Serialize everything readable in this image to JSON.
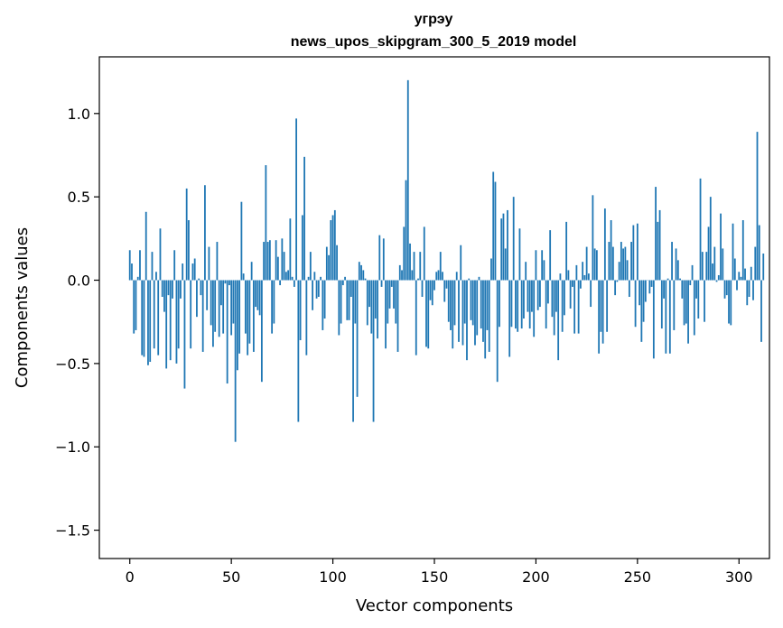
{
  "chart_data": {
    "type": "bar",
    "title_line1": "угрэу",
    "title_line2": "news_upos_skipgram_300_5_2019 model",
    "xlabel": "Vector components",
    "ylabel": "Components values",
    "xlim": [
      -15,
      315
    ],
    "ylim": [
      -1.67,
      1.34
    ],
    "x_ticks": [
      0,
      50,
      100,
      150,
      200,
      250,
      300
    ],
    "x_tick_labels": [
      "0",
      "50",
      "100",
      "150",
      "200",
      "250",
      "300"
    ],
    "y_ticks": [
      1.0,
      0.5,
      0.0,
      -0.5,
      -1.0,
      -1.5
    ],
    "y_tick_labels": [
      "1.0",
      "0.5",
      "0.0",
      "−0.5",
      "−1.0",
      "−1.5"
    ],
    "bar_color": "#1f77b4",
    "values": [
      0.18,
      0.1,
      -0.32,
      -0.3,
      0.02,
      0.18,
      -0.45,
      -0.46,
      0.41,
      -0.51,
      -0.49,
      0.17,
      -0.41,
      0.05,
      -0.45,
      0.31,
      -0.1,
      -0.19,
      -0.53,
      -0.09,
      -0.48,
      -0.11,
      0.18,
      -0.5,
      -0.41,
      -0.11,
      0.1,
      -0.65,
      0.55,
      0.36,
      -0.41,
      0.1,
      0.13,
      -0.22,
      0.01,
      -0.09,
      -0.43,
      0.57,
      -0.18,
      0.2,
      -0.27,
      -0.4,
      -0.31,
      0.23,
      -0.34,
      -0.15,
      -0.32,
      -0.02,
      -0.62,
      -0.03,
      -0.33,
      -0.26,
      -0.97,
      -0.54,
      -0.44,
      0.47,
      0.04,
      -0.32,
      -0.45,
      -0.38,
      0.11,
      -0.43,
      -0.16,
      -0.18,
      -0.21,
      -0.61,
      0.23,
      0.69,
      0.23,
      0.24,
      -0.32,
      -0.26,
      0.24,
      0.14,
      -0.03,
      0.25,
      0.17,
      0.05,
      0.06,
      0.37,
      0.02,
      -0.04,
      0.97,
      -0.85,
      -0.36,
      0.39,
      0.74,
      -0.45,
      0.02,
      0.17,
      -0.18,
      0.05,
      -0.11,
      -0.1,
      0.02,
      -0.3,
      -0.23,
      0.2,
      0.15,
      0.36,
      0.39,
      0.42,
      0.21,
      -0.33,
      -0.26,
      -0.03,
      0.02,
      -0.24,
      -0.24,
      -0.1,
      -0.85,
      -0.26,
      -0.7,
      0.11,
      0.09,
      0.06,
      0.01,
      -0.27,
      -0.16,
      -0.32,
      -0.85,
      -0.23,
      -0.35,
      0.27,
      -0.04,
      0.25,
      -0.41,
      -0.26,
      -0.17,
      -0.04,
      -0.17,
      -0.26,
      -0.43,
      0.09,
      0.06,
      0.32,
      0.6,
      1.2,
      0.22,
      0.06,
      0.17,
      -0.45,
      0.01,
      0.17,
      -0.1,
      0.32,
      -0.4,
      -0.41,
      -0.12,
      -0.15,
      -0.06,
      0.05,
      0.06,
      0.17,
      0.05,
      -0.13,
      -0.05,
      -0.25,
      -0.3,
      -0.41,
      -0.27,
      0.05,
      -0.37,
      0.21,
      -0.39,
      -0.26,
      -0.48,
      0.01,
      -0.24,
      -0.27,
      -0.39,
      -0.33,
      0.02,
      -0.29,
      -0.37,
      -0.47,
      -0.3,
      -0.43,
      0.13,
      0.65,
      0.59,
      -0.61,
      -0.28,
      0.37,
      0.4,
      0.19,
      0.42,
      -0.46,
      -0.28,
      0.5,
      -0.29,
      -0.31,
      0.31,
      -0.29,
      -0.23,
      0.11,
      -0.19,
      -0.29,
      -0.19,
      -0.34,
      0.18,
      -0.18,
      -0.16,
      0.18,
      0.12,
      -0.29,
      -0.14,
      0.3,
      -0.22,
      -0.33,
      -0.19,
      -0.48,
      0.04,
      -0.31,
      -0.21,
      0.35,
      0.06,
      -0.17,
      -0.04,
      -0.32,
      0.09,
      -0.32,
      -0.05,
      0.11,
      0.03,
      0.2,
      0.04,
      -0.16,
      0.51,
      0.19,
      0.18,
      -0.44,
      -0.31,
      -0.38,
      0.43,
      -0.31,
      0.23,
      0.36,
      0.2,
      -0.09,
      -0.01,
      0.11,
      0.23,
      0.19,
      0.2,
      0.12,
      -0.1,
      0.23,
      0.33,
      -0.28,
      0.34,
      -0.15,
      -0.37,
      -0.25,
      -0.13,
      0.0,
      -0.08,
      -0.04,
      -0.47,
      0.56,
      0.35,
      0.42,
      -0.29,
      -0.11,
      -0.44,
      0.01,
      -0.44,
      0.23,
      -0.3,
      0.19,
      0.12,
      0.01,
      -0.11,
      -0.27,
      -0.26,
      -0.38,
      -0.03,
      0.09,
      -0.33,
      -0.11,
      -0.23,
      0.61,
      0.17,
      -0.25,
      0.17,
      0.32,
      0.5,
      0.1,
      0.2,
      -0.01,
      0.03,
      0.4,
      0.19,
      -0.11,
      -0.09,
      -0.26,
      -0.27,
      0.34,
      0.13,
      -0.06,
      0.05,
      0.02,
      0.36,
      0.07,
      -0.15,
      -0.1,
      0.08,
      -0.12,
      0.2,
      0.89,
      0.33,
      -0.37,
      0.16
    ]
  }
}
